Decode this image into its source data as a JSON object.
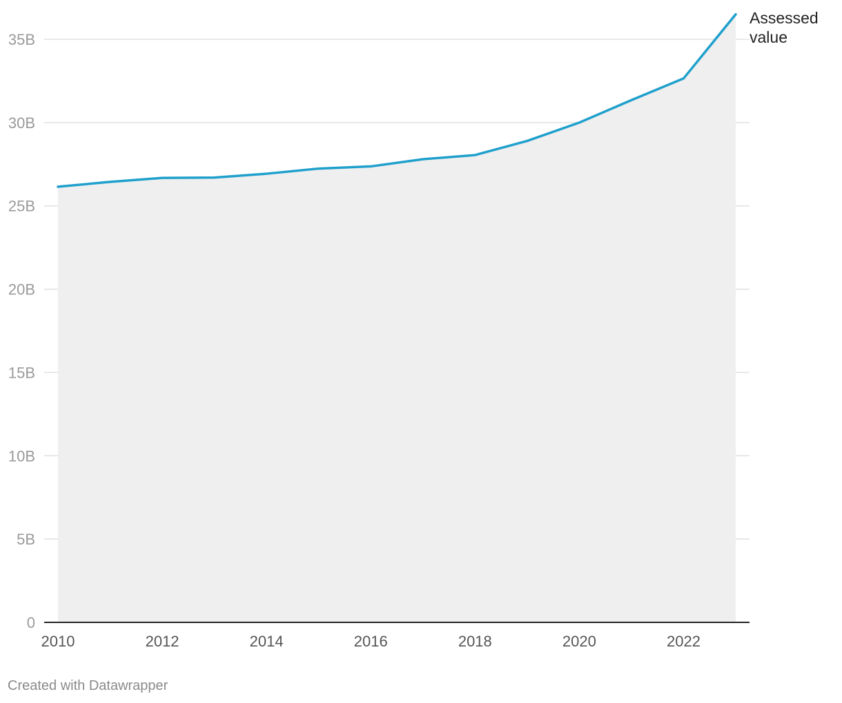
{
  "chart_data": {
    "type": "area",
    "title": "",
    "xlabel": "",
    "ylabel": "",
    "x": [
      2010,
      2011,
      2012,
      2013,
      2014,
      2015,
      2016,
      2017,
      2018,
      2019,
      2020,
      2021,
      2022,
      2023
    ],
    "series": [
      {
        "name": "Assessed value",
        "name_lines": [
          "Assessed",
          "value"
        ],
        "values": [
          26.15,
          26.44,
          26.68,
          26.7,
          26.93,
          27.24,
          27.37,
          27.8,
          28.05,
          28.9,
          30.0,
          31.35,
          32.65,
          36.5
        ],
        "color": "#1fa0cc"
      }
    ],
    "y_ticks": [
      {
        "value": 0,
        "label": "0"
      },
      {
        "value": 5,
        "label": "5B"
      },
      {
        "value": 10,
        "label": "10B"
      },
      {
        "value": 15,
        "label": "15B"
      },
      {
        "value": 20,
        "label": "20B"
      },
      {
        "value": 25,
        "label": "25B"
      },
      {
        "value": 30,
        "label": "30B"
      },
      {
        "value": 35,
        "label": "35B"
      }
    ],
    "x_ticks": [
      {
        "value": 2010,
        "label": "2010"
      },
      {
        "value": 2012,
        "label": "2012"
      },
      {
        "value": 2014,
        "label": "2014"
      },
      {
        "value": 2016,
        "label": "2016"
      },
      {
        "value": 2018,
        "label": "2018"
      },
      {
        "value": 2020,
        "label": "2020"
      },
      {
        "value": 2022,
        "label": "2022"
      }
    ],
    "xlim": [
      2010,
      2023
    ],
    "ylim": [
      0,
      35
    ],
    "units": "billions",
    "grid": true,
    "area_fill_color": "#efefef",
    "gridline_color": "#e0e0e0",
    "baseline_color": "#222222"
  },
  "footer": {
    "credit": "Created with Datawrapper"
  }
}
